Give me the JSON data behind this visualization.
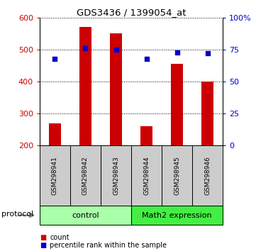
{
  "title": "GDS3436 / 1399054_at",
  "samples": [
    "GSM298941",
    "GSM298942",
    "GSM298943",
    "GSM298944",
    "GSM298945",
    "GSM298946"
  ],
  "bar_values": [
    270,
    570,
    550,
    260,
    455,
    400
  ],
  "percentile_values": [
    68,
    76,
    75,
    68,
    73,
    72
  ],
  "bar_color": "#cc0000",
  "percentile_color": "#0000cc",
  "ylim_left": [
    200,
    600
  ],
  "ylim_right": [
    0,
    100
  ],
  "yticks_left": [
    200,
    300,
    400,
    500,
    600
  ],
  "yticks_right": [
    0,
    25,
    50,
    75,
    100
  ],
  "yticklabels_right": [
    "0",
    "25",
    "50",
    "75",
    "100%"
  ],
  "groups": [
    {
      "label": "control",
      "start": 0,
      "end": 3,
      "color": "#aaffaa"
    },
    {
      "label": "Math2 expression",
      "start": 3,
      "end": 6,
      "color": "#44ee44"
    }
  ],
  "protocol_label": "protocol",
  "legend_items": [
    {
      "label": "count",
      "color": "#cc0000"
    },
    {
      "label": "percentile rank within the sample",
      "color": "#0000cc"
    }
  ],
  "sample_box_color": "#cccccc",
  "bar_width": 0.4
}
